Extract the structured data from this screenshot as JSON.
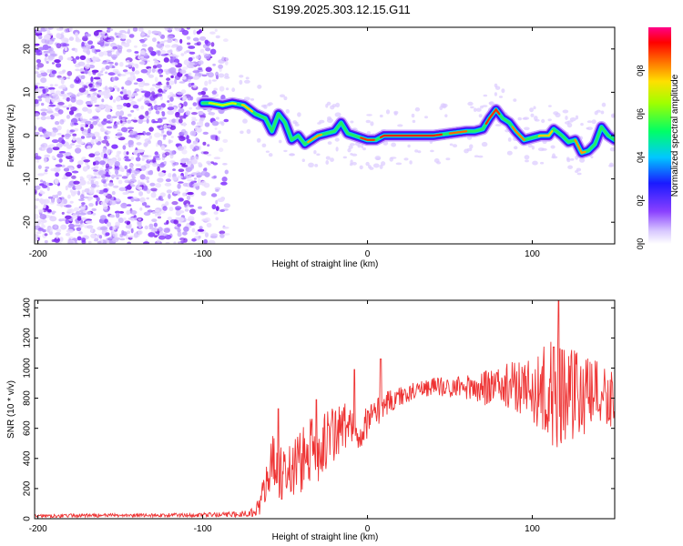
{
  "figure": {
    "title": "S199.2025.303.12.15.G11"
  },
  "colorbar": {
    "label": "Normalized spectral amplitude",
    "range": [
      0,
      1
    ],
    "ticks": [
      "0.0",
      "0.2",
      "0.4",
      "0.6",
      "0.8"
    ]
  },
  "colors": {
    "snr_line": "#ee3333",
    "noise": "#8a40ff",
    "axis": "#000000"
  },
  "chart_data": [
    {
      "type": "heatmap",
      "title": "S199.2025.303.12.15.G11",
      "xlabel": "Height of straight line (km)",
      "ylabel": "Frequency (Hz)",
      "xlim": [
        -202,
        150
      ],
      "ylim": [
        -25,
        25
      ],
      "xticks": [
        -200,
        -100,
        0,
        100
      ],
      "yticks": [
        -20,
        -10,
        0,
        10,
        20
      ],
      "noise_region_x": [
        -202,
        -85
      ],
      "ridge": {
        "x": [
          -100,
          -95,
          -88,
          -82,
          -75,
          -68,
          -62,
          -58,
          -54,
          -50,
          -46,
          -42,
          -38,
          -34,
          -30,
          -25,
          -20,
          -16,
          -12,
          -8,
          -4,
          0,
          5,
          10,
          20,
          30,
          40,
          50,
          60,
          65,
          70,
          74,
          78,
          82,
          86,
          90,
          95,
          100,
          105,
          110,
          113,
          118,
          122,
          126,
          130,
          134,
          138,
          142,
          146,
          150
        ],
        "y": [
          7.5,
          7.5,
          7,
          7.5,
          7,
          5,
          4,
          1,
          5,
          3,
          -1,
          0,
          -2,
          -1,
          0,
          0.5,
          1,
          3,
          0.5,
          0,
          -0.5,
          -1,
          -1,
          0,
          0,
          0,
          0,
          0.5,
          1,
          1,
          1.5,
          4,
          6,
          4,
          3,
          1,
          -1,
          -0.5,
          0,
          0,
          1.5,
          0,
          -1.5,
          -1,
          -4,
          -3.5,
          -2,
          2,
          0,
          -1
        ]
      }
    },
    {
      "type": "line",
      "xlabel": "Height of straight line (km)",
      "ylabel": "SNR (10 * v/v)",
      "xlim": [
        -202,
        150
      ],
      "ylim": [
        0,
        1450
      ],
      "xticks": [
        -200,
        -100,
        0,
        100
      ],
      "yticks": [
        0,
        200,
        400,
        600,
        800,
        1000,
        1200,
        1400
      ],
      "series": [
        {
          "name": "SNR",
          "x": [
            -202,
            -180,
            -160,
            -140,
            -120,
            -100,
            -80,
            -70,
            -65,
            -62,
            -60,
            -58,
            -55,
            -52,
            -48,
            -44,
            -40,
            -35,
            -30,
            -25,
            -20,
            -15,
            -10,
            -5,
            0,
            5,
            10,
            15,
            20,
            25,
            30,
            40,
            50,
            60,
            70,
            80,
            90,
            100,
            105,
            110,
            115,
            120,
            125,
            130,
            135,
            140,
            145,
            150
          ],
          "envelope": [
            20,
            20,
            22,
            22,
            24,
            25,
            28,
            40,
            110,
            200,
            260,
            380,
            320,
            290,
            320,
            360,
            380,
            430,
            450,
            520,
            560,
            610,
            620,
            600,
            650,
            700,
            760,
            790,
            810,
            830,
            860,
            880,
            870,
            880,
            860,
            890,
            880,
            860,
            850,
            860,
            820,
            840,
            850,
            820,
            810,
            830,
            810,
            800
          ],
          "spread": [
            12,
            12,
            12,
            12,
            12,
            14,
            18,
            30,
            80,
            130,
            160,
            200,
            190,
            200,
            210,
            220,
            230,
            240,
            220,
            220,
            200,
            180,
            160,
            140,
            120,
            100,
            90,
            80,
            70,
            60,
            60,
            60,
            70,
            90,
            110,
            140,
            170,
            220,
            280,
            330,
            400,
            380,
            330,
            300,
            250,
            220,
            200,
            200
          ],
          "spikes": [
            [
              -54,
              730
            ],
            [
              -31,
              790
            ],
            [
              -8,
              990
            ],
            [
              -7,
              600
            ],
            [
              8,
              1060
            ],
            [
              72,
              980
            ],
            [
              113,
              1140
            ],
            [
              116,
              1450
            ],
            [
              118,
              1120
            ]
          ]
        }
      ]
    }
  ]
}
